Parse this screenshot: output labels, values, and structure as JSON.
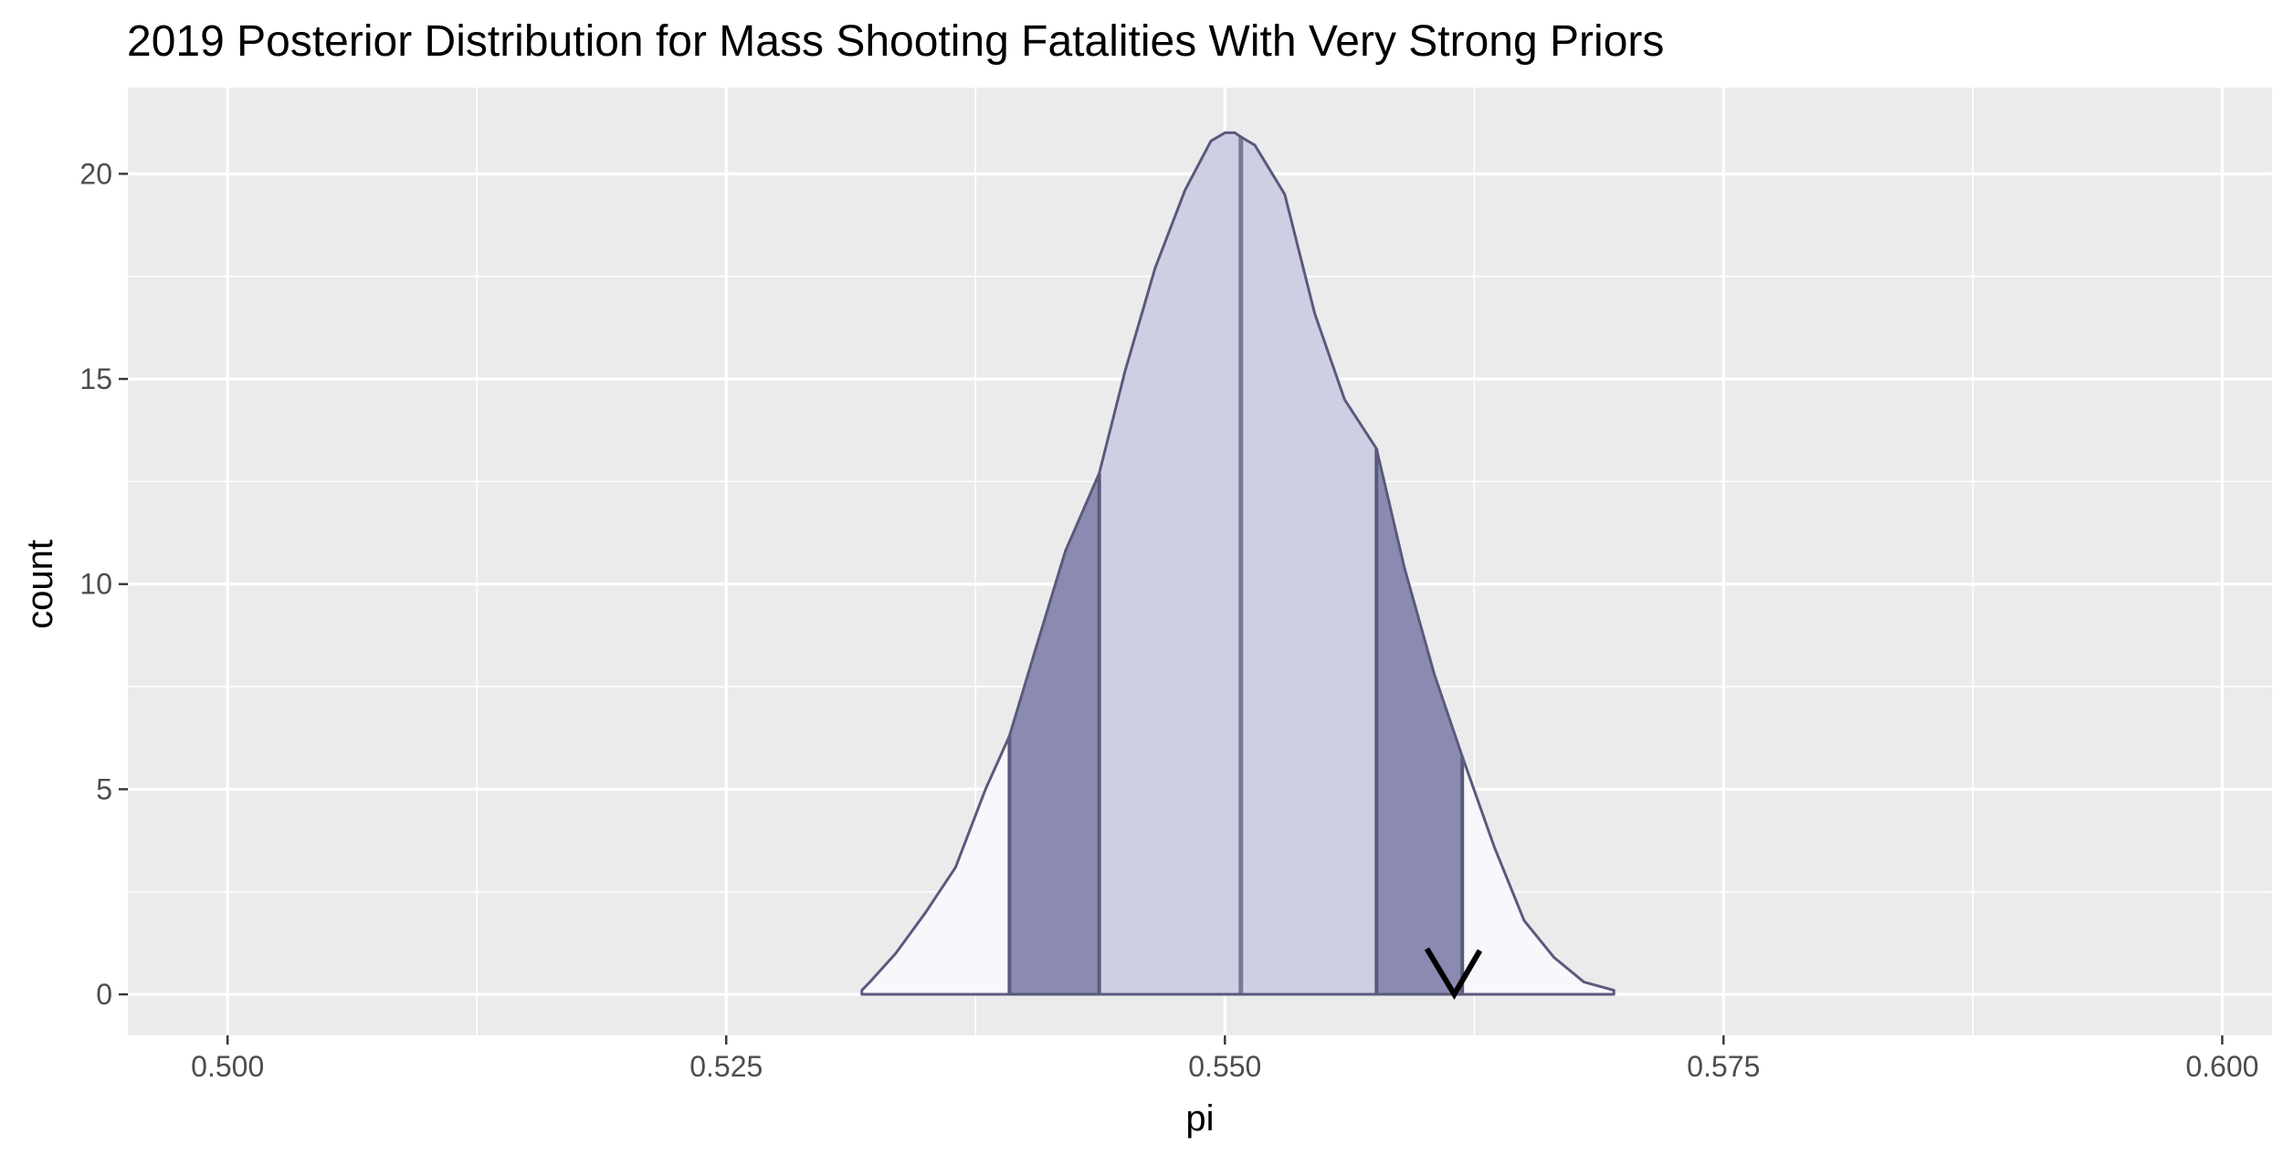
{
  "chart_data": {
    "type": "area",
    "title": "2019  Posterior Distribution for Mass Shooting Fatalities With Very Strong Priors",
    "xlabel": "pi",
    "ylabel": "count",
    "xlim": [
      0.495,
      0.6025
    ],
    "ylim": [
      -1.0,
      22.1
    ],
    "x_ticks": [
      0.5,
      0.525,
      0.55,
      0.575,
      0.6
    ],
    "x_tick_labels": [
      "0.500",
      "0.525",
      "0.550",
      "0.575",
      "0.600"
    ],
    "y_ticks": [
      0,
      5,
      10,
      15,
      20
    ],
    "y_tick_labels": [
      "0",
      "5",
      "10",
      "15",
      "20"
    ],
    "grid": true,
    "legend": "none",
    "density_curve": {
      "x": [
        0.5318,
        0.5322,
        0.5335,
        0.535,
        0.5365,
        0.538,
        0.5392,
        0.5405,
        0.542,
        0.5437,
        0.545,
        0.5465,
        0.548,
        0.5493,
        0.55,
        0.5505,
        0.5508,
        0.5515,
        0.553,
        0.5545,
        0.556,
        0.5576,
        0.559,
        0.5605,
        0.5619,
        0.5635,
        0.565,
        0.5665,
        0.568,
        0.5695
      ],
      "y": [
        0.1,
        0.3,
        1.0,
        2.0,
        3.1,
        5.0,
        6.3,
        8.4,
        10.8,
        12.7,
        15.2,
        17.7,
        19.6,
        20.8,
        21.0,
        21.0,
        20.9,
        20.7,
        19.5,
        16.6,
        14.5,
        13.3,
        10.4,
        7.8,
        5.8,
        3.6,
        1.8,
        0.9,
        0.3,
        0.1
      ]
    },
    "bands": [
      {
        "name": "outer",
        "from": 0.5318,
        "to": 0.5392,
        "color": "#f8f8fc"
      },
      {
        "name": "middle",
        "from": 0.5392,
        "to": 0.5437,
        "color": "#8b8ab0"
      },
      {
        "name": "inner",
        "from": 0.5437,
        "to": 0.5576,
        "color": "#cfcfe4"
      },
      {
        "name": "middle",
        "from": 0.5576,
        "to": 0.5619,
        "color": "#8b8ab0"
      },
      {
        "name": "outer",
        "from": 0.5619,
        "to": 0.5695,
        "color": "#f8f8fc"
      }
    ],
    "interval_lines": [
      0.5392,
      0.5437,
      0.5508,
      0.5576,
      0.5619
    ],
    "observed_value": 0.5615,
    "colors": {
      "panel_background": "#ebebeb",
      "grid_major": "#ffffff",
      "outline": "#5a5a7e",
      "median_line": "#7a7a98",
      "marker": "#000000"
    }
  }
}
